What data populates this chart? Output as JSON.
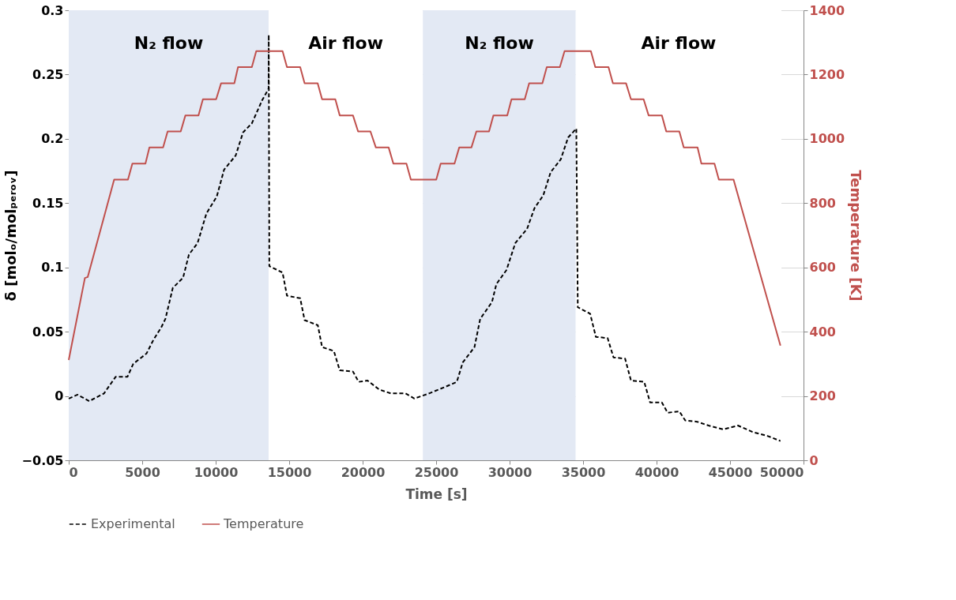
{
  "chart_data": {
    "type": "line",
    "xlabel": "Time [s]",
    "ylabel": "δ [molₒ/molₚₑᵣₒᵥ]",
    "y2label": "Temperature [K]",
    "xlim": [
      0,
      50000
    ],
    "xticks": [
      0,
      5000,
      10000,
      15000,
      20000,
      25000,
      30000,
      35000,
      40000,
      45000,
      50000
    ],
    "ylim": [
      -0.05,
      0.3
    ],
    "yticks": [
      -0.05,
      0,
      0.05,
      0.1,
      0.15,
      0.2,
      0.25,
      0.3
    ],
    "y2lim": [
      0,
      1400
    ],
    "y2ticks": [
      0,
      200,
      400,
      600,
      800,
      1000,
      1200,
      1400
    ],
    "grid": "y",
    "legend": "bottom",
    "bands": [
      {
        "axis": "x",
        "from": 0,
        "to": 13600,
        "label": "N₂ flow",
        "color": "#e3e9f4"
      },
      {
        "axis": "x",
        "from": 13600,
        "to": 24100,
        "label": "Air flow",
        "color": "#ffffff"
      },
      {
        "axis": "x",
        "from": 24100,
        "to": 34500,
        "label": "N₂ flow",
        "color": "#e3e9f4"
      },
      {
        "axis": "x",
        "from": 34500,
        "to": 48500,
        "label": "Air flow",
        "color": "#ffffff"
      }
    ],
    "series": [
      {
        "name": "Experimental",
        "color": "#000000",
        "line_style": "dashed",
        "x": [
          0,
          600,
          1400,
          2400,
          3200,
          4000,
          4390,
          5290,
          5780,
          6280,
          6580,
          7080,
          7780,
          8180,
          8770,
          9370,
          10070,
          10570,
          11360,
          11860,
          12460,
          13160,
          13600,
          13610,
          13650,
          14550,
          14850,
          15750,
          16050,
          16950,
          17240,
          18040,
          18440,
          19340,
          19730,
          20330,
          21130,
          21920,
          22920,
          23520,
          24520,
          25610,
          26410,
          26810,
          27610,
          28000,
          28800,
          29100,
          29790,
          30390,
          31190,
          31690,
          32290,
          32790,
          33480,
          33980,
          34540,
          34640,
          35480,
          35870,
          36670,
          37070,
          37860,
          38260,
          39160,
          39560,
          40360,
          40750,
          41550,
          41950,
          42750,
          43540,
          44540,
          45540,
          46530,
          47530,
          48430
        ],
        "values": [
          -0.002,
          0.001,
          -0.004,
          0.002,
          0.015,
          0.015,
          0.025,
          0.033,
          0.044,
          0.053,
          0.06,
          0.084,
          0.092,
          0.11,
          0.119,
          0.142,
          0.155,
          0.176,
          0.187,
          0.205,
          0.212,
          0.23,
          0.239,
          0.281,
          0.101,
          0.096,
          0.078,
          0.076,
          0.059,
          0.055,
          0.038,
          0.035,
          0.02,
          0.019,
          0.011,
          0.012,
          0.005,
          0.002,
          0.002,
          -0.002,
          0.002,
          0.007,
          0.011,
          0.026,
          0.038,
          0.06,
          0.073,
          0.087,
          0.098,
          0.119,
          0.13,
          0.146,
          0.156,
          0.174,
          0.184,
          0.201,
          0.208,
          0.069,
          0.064,
          0.046,
          0.045,
          0.03,
          0.029,
          0.012,
          0.011,
          -0.005,
          -0.005,
          -0.013,
          -0.012,
          -0.019,
          -0.02,
          -0.023,
          -0.026,
          -0.023,
          -0.028,
          -0.031,
          -0.035
        ]
      },
      {
        "name": "Temperature",
        "color": "#c0504d",
        "line_style": "solid",
        "axis": "y2",
        "x": [
          0,
          1100,
          1290,
          3090,
          4030,
          4330,
          5220,
          5490,
          6420,
          6730,
          7620,
          7940,
          8830,
          9130,
          10030,
          10370,
          11270,
          11520,
          12460,
          12760,
          14550,
          14850,
          15750,
          16050,
          16940,
          17240,
          18140,
          18440,
          19340,
          19690,
          20530,
          20900,
          21770,
          22090,
          22980,
          23280,
          25010,
          25310,
          26250,
          26570,
          27400,
          27740,
          28600,
          28900,
          29840,
          30130,
          31030,
          31330,
          32230,
          32530,
          33420,
          33740,
          35530,
          35830,
          36730,
          37030,
          37920,
          38260,
          39120,
          39460,
          40360,
          40660,
          41550,
          41850,
          42790,
          43050,
          43940,
          44240,
          45240,
          48430
        ],
        "values": [
          312,
          567,
          570,
          873,
          873,
          923,
          923,
          973,
          973,
          1023,
          1023,
          1073,
          1073,
          1123,
          1123,
          1173,
          1173,
          1223,
          1223,
          1273,
          1273,
          1223,
          1223,
          1173,
          1173,
          1123,
          1123,
          1073,
          1073,
          1023,
          1023,
          973,
          973,
          923,
          923,
          873,
          873,
          923,
          923,
          973,
          973,
          1023,
          1023,
          1073,
          1073,
          1123,
          1123,
          1173,
          1173,
          1223,
          1223,
          1273,
          1273,
          1223,
          1223,
          1173,
          1173,
          1123,
          1123,
          1073,
          1073,
          1023,
          1023,
          973,
          973,
          923,
          923,
          873,
          873,
          357
        ]
      }
    ]
  }
}
